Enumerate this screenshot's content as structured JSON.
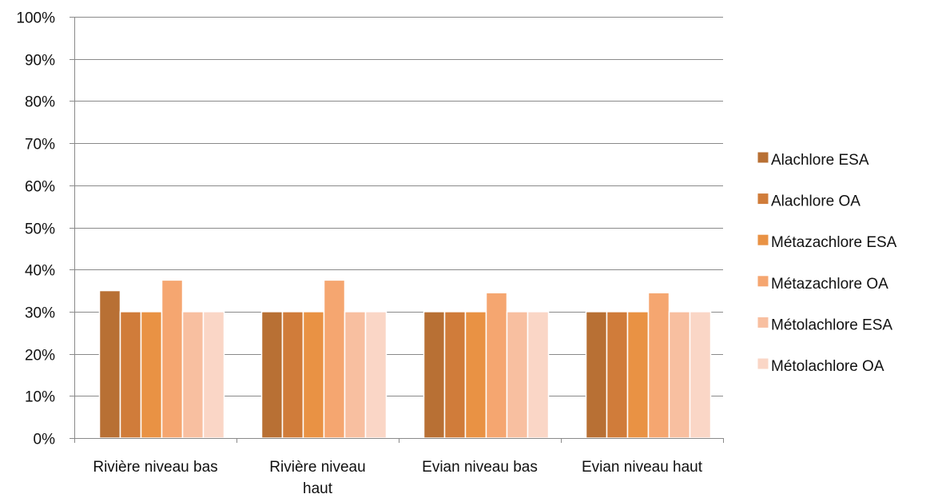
{
  "chart_data": {
    "type": "bar",
    "title": "",
    "xlabel": "",
    "ylabel": "",
    "categories": [
      [
        "Rivière niveau bas"
      ],
      [
        "Rivière niveau",
        "haut"
      ],
      [
        "Evian niveau bas"
      ],
      [
        "Evian niveau haut"
      ]
    ],
    "ylim": [
      0,
      100
    ],
    "y_ticks": [
      "0%",
      "10%",
      "20%",
      "30%",
      "40%",
      "50%",
      "60%",
      "70%",
      "80%",
      "90%",
      "100%"
    ],
    "grid": true,
    "legend_position": "right",
    "series": [
      {
        "name": "Alachlore ESA",
        "color": "#b87034",
        "values": [
          35,
          30,
          30,
          30
        ]
      },
      {
        "name": "Alachlore OA",
        "color": "#d07c3a",
        "values": [
          30,
          30,
          30,
          30
        ]
      },
      {
        "name": "Métazachlore ESA",
        "color": "#e99244",
        "values": [
          30,
          30,
          30,
          30
        ]
      },
      {
        "name": "Métazachlore OA",
        "color": "#f5a670",
        "values": [
          37.5,
          37.5,
          34.5,
          34.5
        ]
      },
      {
        "name": "Métolachlore ESA",
        "color": "#f8bfa0",
        "values": [
          30,
          30,
          30,
          30
        ]
      },
      {
        "name": "Métolachlore OA",
        "color": "#fad6c6",
        "values": [
          30,
          30,
          30,
          30
        ]
      }
    ]
  }
}
